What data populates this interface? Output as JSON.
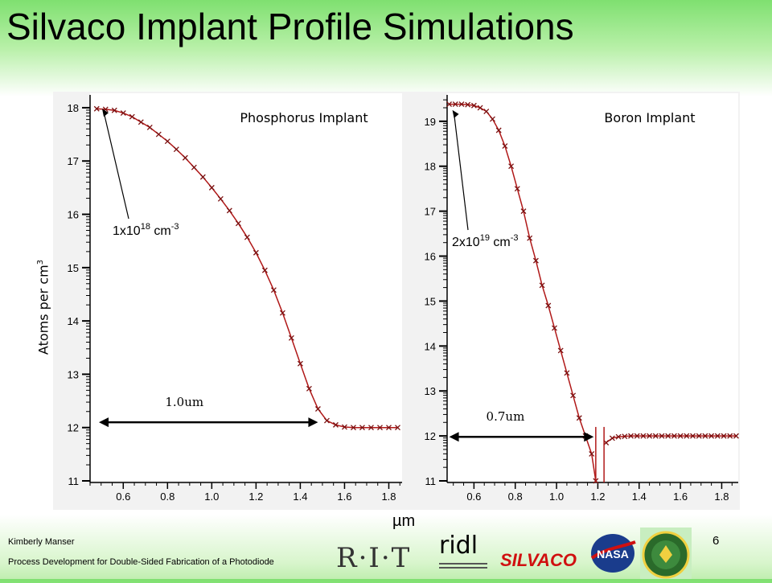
{
  "slide": {
    "title": "Silvaco Implant Profile Simulations",
    "y_axis_label": "Atoms per cm",
    "y_axis_label_sup": "3",
    "x_axis_label": "µm",
    "footer_author": "Kimberly Manser",
    "footer_talk": "Process Development for Double-Sided Fabrication of a Photodiode",
    "page_number": "6",
    "logos": {
      "rit": "R·I·T",
      "ridl": "ridl",
      "silvaco": "SILVACO",
      "nasa": "NASA"
    }
  },
  "colors": {
    "curve": "#b01818",
    "marker": "#7a1010",
    "title_gradient_top": "#7fe070"
  },
  "chart_data": [
    {
      "type": "line",
      "title": "Phosphorus Implant",
      "y_scale": "log10",
      "x": [
        0.48,
        0.52,
        0.56,
        0.6,
        0.64,
        0.68,
        0.72,
        0.76,
        0.8,
        0.84,
        0.88,
        0.92,
        0.96,
        1.0,
        1.04,
        1.08,
        1.12,
        1.16,
        1.2,
        1.24,
        1.28,
        1.32,
        1.36,
        1.4,
        1.44,
        1.48,
        1.52,
        1.56,
        1.6,
        1.64,
        1.68,
        1.72,
        1.76,
        1.8,
        1.84
      ],
      "y": [
        17.98,
        17.97,
        17.95,
        17.9,
        17.83,
        17.73,
        17.63,
        17.5,
        17.37,
        17.22,
        17.06,
        16.88,
        16.7,
        16.5,
        16.29,
        16.07,
        15.83,
        15.57,
        15.28,
        14.95,
        14.58,
        14.15,
        13.68,
        13.2,
        12.73,
        12.35,
        12.13,
        12.05,
        12.01,
        12.0,
        12.0,
        12.0,
        12.0,
        12.0,
        12.0
      ],
      "xticks": [
        "0.6",
        "0.8",
        "1.0",
        "1.2",
        "1.4",
        "1.6",
        "1.8"
      ],
      "yticks": [
        "11",
        "12",
        "13",
        "14",
        "15",
        "16",
        "17",
        "18"
      ],
      "xlim": [
        0.45,
        1.86
      ],
      "ylim": [
        11,
        18.15
      ],
      "annotation": {
        "base": "1x10",
        "exp": "18",
        "unit": " cm",
        "unit_exp": "-3",
        "point": [
          0.49,
          17.98
        ]
      },
      "measurement": {
        "label": "1.0um",
        "from": 0.49,
        "to": 1.48,
        "y": 12.1
      }
    },
    {
      "type": "line",
      "title": "Boron Implant",
      "y_scale": "log10",
      "x": [
        0.48,
        0.51,
        0.54,
        0.57,
        0.6,
        0.63,
        0.66,
        0.69,
        0.72,
        0.75,
        0.78,
        0.81,
        0.84,
        0.87,
        0.9,
        0.93,
        0.96,
        0.99,
        1.02,
        1.05,
        1.08,
        1.11,
        1.14,
        1.17,
        1.19
      ],
      "y": [
        19.38,
        19.38,
        19.38,
        19.37,
        19.35,
        19.3,
        19.22,
        19.05,
        18.8,
        18.45,
        18.0,
        17.5,
        17.0,
        16.4,
        15.9,
        15.35,
        14.9,
        14.4,
        13.9,
        13.4,
        12.9,
        12.4,
        12.0,
        11.6,
        11.0
      ],
      "x2": [
        1.24,
        1.27,
        1.3,
        1.33,
        1.36,
        1.39,
        1.42,
        1.45,
        1.48,
        1.51,
        1.54,
        1.57,
        1.6,
        1.63,
        1.66,
        1.69,
        1.72,
        1.75,
        1.78,
        1.81,
        1.84,
        1.87
      ],
      "y2": [
        11.85,
        11.95,
        11.98,
        11.99,
        12.0,
        12.0,
        12.0,
        12.0,
        12.0,
        12.0,
        12.0,
        12.0,
        12.0,
        12.0,
        12.0,
        12.0,
        12.0,
        12.0,
        12.0,
        12.0,
        12.0,
        12.0
      ],
      "xticks": [
        "0.6",
        "0.8",
        "1.0",
        "1.2",
        "1.4",
        "1.6",
        "1.8"
      ],
      "yticks": [
        "11",
        "12",
        "13",
        "14",
        "15",
        "16",
        "17",
        "18",
        "19"
      ],
      "xlim": [
        0.47,
        1.88
      ],
      "ylim": [
        11,
        19.48
      ],
      "annotation": {
        "base": "2x10",
        "exp": "19",
        "unit": " cm",
        "unit_exp": "-3",
        "point": [
          0.48,
          19.25
        ]
      },
      "measurement": {
        "label": "0.7um",
        "from": 0.48,
        "to": 1.18,
        "y": 11.98
      }
    }
  ]
}
